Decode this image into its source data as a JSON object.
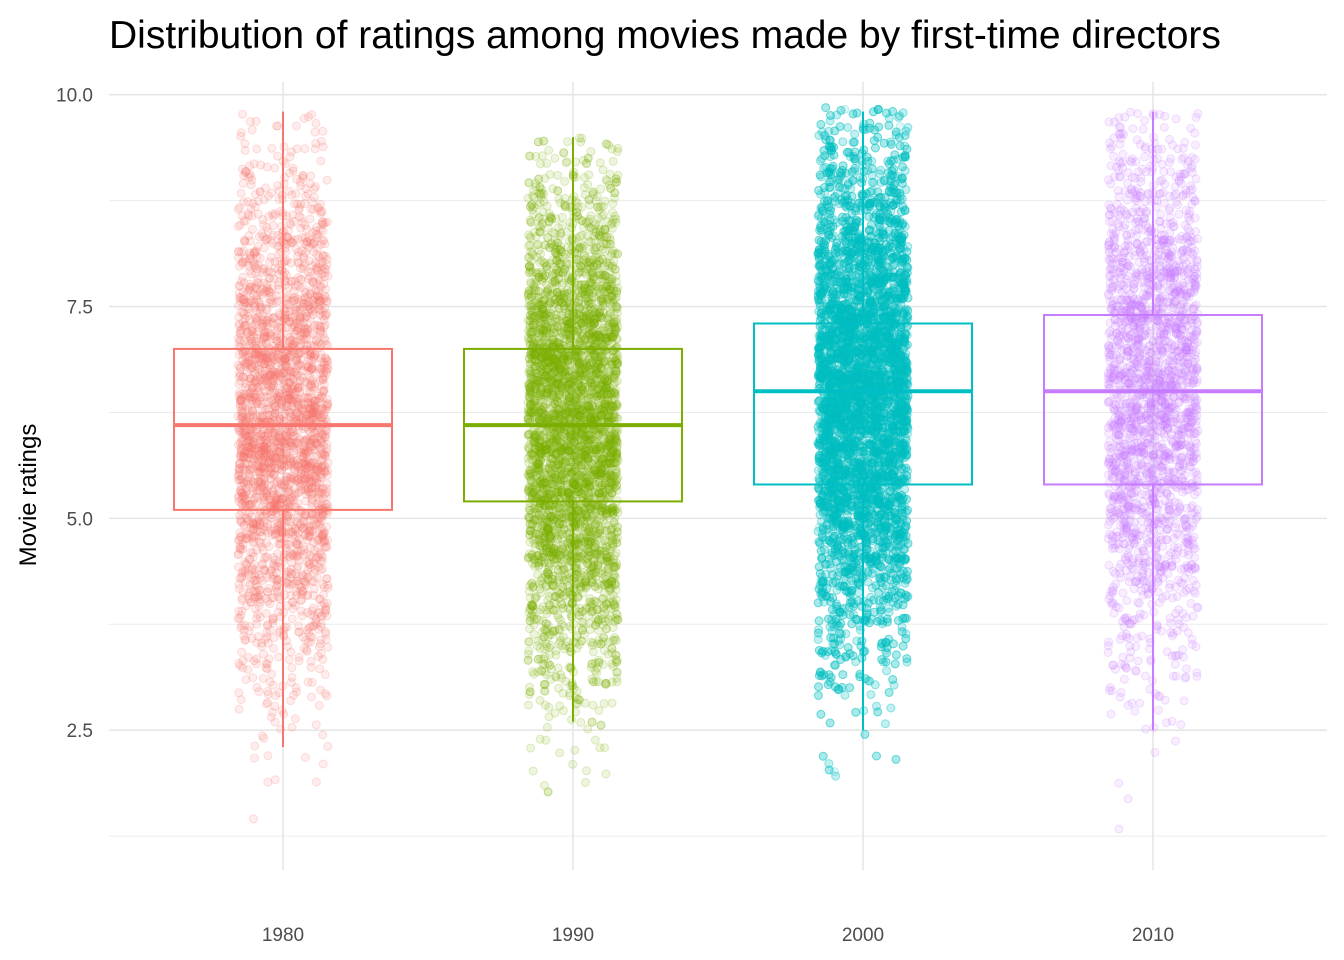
{
  "chart_data": {
    "type": "boxplot",
    "title": "Distribution of ratings among movies made by first-time directors",
    "xlabel": "",
    "ylabel": "Movie ratings",
    "ylim": [
      0.85,
      10.15
    ],
    "xlim": [
      1974,
      2016
    ],
    "y_ticks": [
      "2.5",
      "5.0",
      "7.5",
      "10.0"
    ],
    "y_tick_values": [
      2.5,
      5.0,
      7.5,
      10.0
    ],
    "x_ticks": [
      "1980",
      "1990",
      "2000",
      "2010"
    ],
    "grid": true,
    "legend": "none",
    "jitter_points": true,
    "series": [
      {
        "x": 1980,
        "color": "#F8766D",
        "min": 2.3,
        "q1": 5.1,
        "median": 6.1,
        "q3": 7.0,
        "max": 9.8,
        "point_range": [
          1.1,
          9.8
        ],
        "point_count": 2600
      },
      {
        "x": 1990,
        "color": "#7CAE00",
        "min": 2.6,
        "q1": 5.2,
        "median": 6.1,
        "q3": 7.0,
        "max": 9.5,
        "point_range": [
          1.2,
          9.5
        ],
        "point_count": 4200
      },
      {
        "x": 2000,
        "color": "#00BFC4",
        "min": 2.5,
        "q1": 5.4,
        "median": 6.5,
        "q3": 7.3,
        "max": 9.8,
        "point_range": [
          0.95,
          9.85
        ],
        "point_count": 9000
      },
      {
        "x": 2010,
        "color": "#C77CFF",
        "min": 2.5,
        "q1": 5.4,
        "median": 6.5,
        "q3": 7.4,
        "max": 9.8,
        "point_range": [
          0.95,
          9.8
        ],
        "point_count": 2200
      }
    ]
  }
}
